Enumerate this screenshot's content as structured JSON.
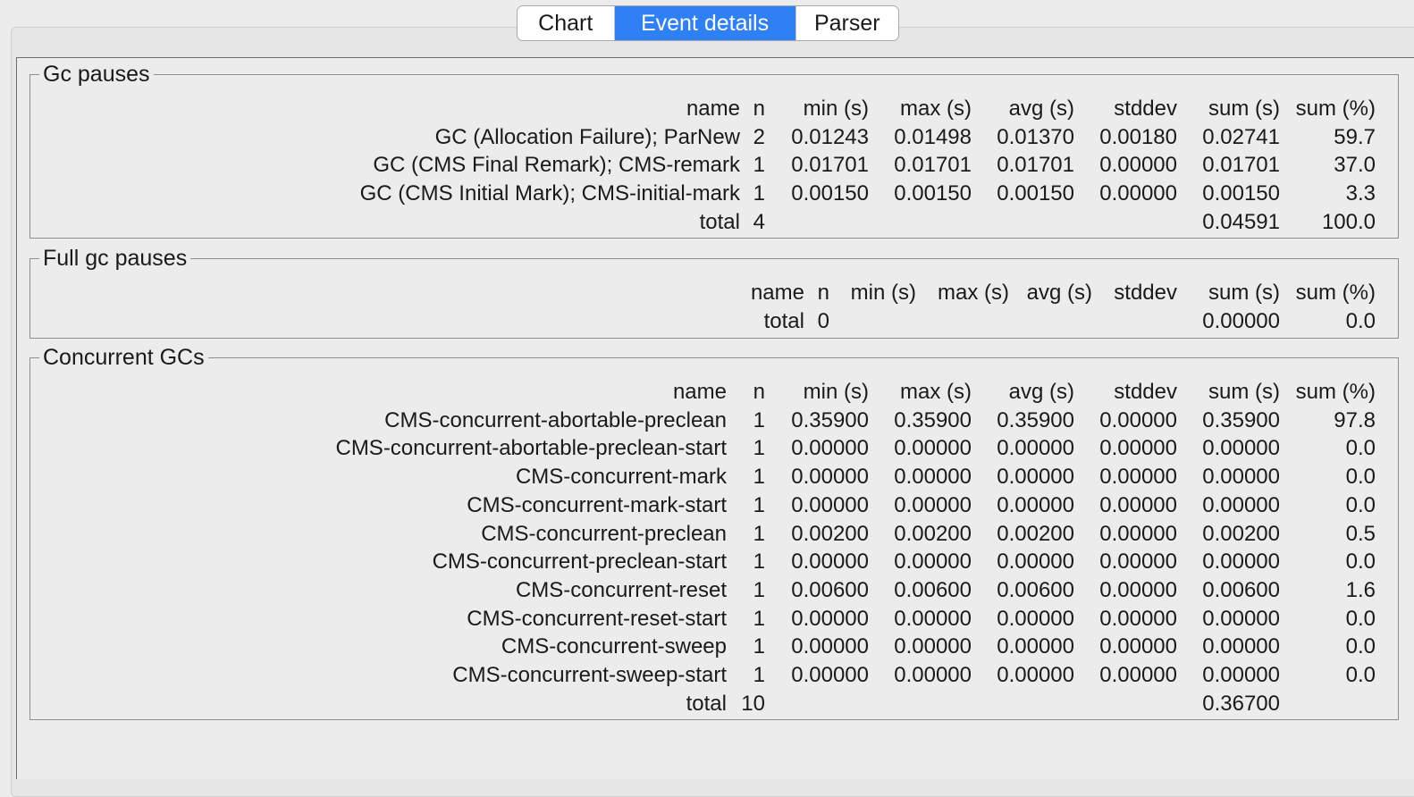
{
  "tabs": [
    {
      "label": "Chart",
      "selected": false
    },
    {
      "label": "Event details",
      "selected": true
    },
    {
      "label": "Parser",
      "selected": false
    }
  ],
  "colors": {
    "selected_tab": "#2f7ff5",
    "background": "#ececec"
  },
  "gc_pauses": {
    "title": "Gc pauses",
    "header": [
      "name",
      "n",
      "min (s)",
      "max (s)",
      "avg (s)",
      "stddev",
      "sum (s)",
      "sum (%)"
    ],
    "rows": [
      [
        "GC (Allocation Failure); ParNew",
        "2",
        "0.01243",
        "0.01498",
        "0.01370",
        "0.00180",
        "0.02741",
        "59.7"
      ],
      [
        "GC (CMS Final Remark); CMS-remark",
        "1",
        "0.01701",
        "0.01701",
        "0.01701",
        "0.00000",
        "0.01701",
        "37.0"
      ],
      [
        "GC (CMS Initial Mark); CMS-initial-mark",
        "1",
        "0.00150",
        "0.00150",
        "0.00150",
        "0.00000",
        "0.00150",
        "3.3"
      ],
      [
        "total",
        "4",
        "",
        "",
        "",
        "",
        "0.04591",
        "100.0"
      ]
    ]
  },
  "full_gc_pauses": {
    "title": "Full gc pauses",
    "header": [
      "name",
      "n",
      "min (s)",
      "max (s)",
      "avg (s)",
      "stddev",
      "sum (s)",
      "sum (%)"
    ],
    "rows": [
      [
        "total",
        "0",
        "",
        "",
        "",
        "",
        "0.00000",
        "0.0"
      ]
    ]
  },
  "concurrent_gcs": {
    "title": "Concurrent GCs",
    "header": [
      "name",
      "n",
      "min (s)",
      "max (s)",
      "avg (s)",
      "stddev",
      "sum (s)",
      "sum (%)"
    ],
    "rows": [
      [
        "CMS-concurrent-abortable-preclean",
        "1",
        "0.35900",
        "0.35900",
        "0.35900",
        "0.00000",
        "0.35900",
        "97.8"
      ],
      [
        "CMS-concurrent-abortable-preclean-start",
        "1",
        "0.00000",
        "0.00000",
        "0.00000",
        "0.00000",
        "0.00000",
        "0.0"
      ],
      [
        "CMS-concurrent-mark",
        "1",
        "0.00000",
        "0.00000",
        "0.00000",
        "0.00000",
        "0.00000",
        "0.0"
      ],
      [
        "CMS-concurrent-mark-start",
        "1",
        "0.00000",
        "0.00000",
        "0.00000",
        "0.00000",
        "0.00000",
        "0.0"
      ],
      [
        "CMS-concurrent-preclean",
        "1",
        "0.00200",
        "0.00200",
        "0.00200",
        "0.00000",
        "0.00200",
        "0.5"
      ],
      [
        "CMS-concurrent-preclean-start",
        "1",
        "0.00000",
        "0.00000",
        "0.00000",
        "0.00000",
        "0.00000",
        "0.0"
      ],
      [
        "CMS-concurrent-reset",
        "1",
        "0.00600",
        "0.00600",
        "0.00600",
        "0.00000",
        "0.00600",
        "1.6"
      ],
      [
        "CMS-concurrent-reset-start",
        "1",
        "0.00000",
        "0.00000",
        "0.00000",
        "0.00000",
        "0.00000",
        "0.0"
      ],
      [
        "CMS-concurrent-sweep",
        "1",
        "0.00000",
        "0.00000",
        "0.00000",
        "0.00000",
        "0.00000",
        "0.0"
      ],
      [
        "CMS-concurrent-sweep-start",
        "1",
        "0.00000",
        "0.00000",
        "0.00000",
        "0.00000",
        "0.00000",
        "0.0"
      ],
      [
        "total",
        "10",
        "",
        "",
        "",
        "",
        "0.36700",
        ""
      ]
    ]
  }
}
